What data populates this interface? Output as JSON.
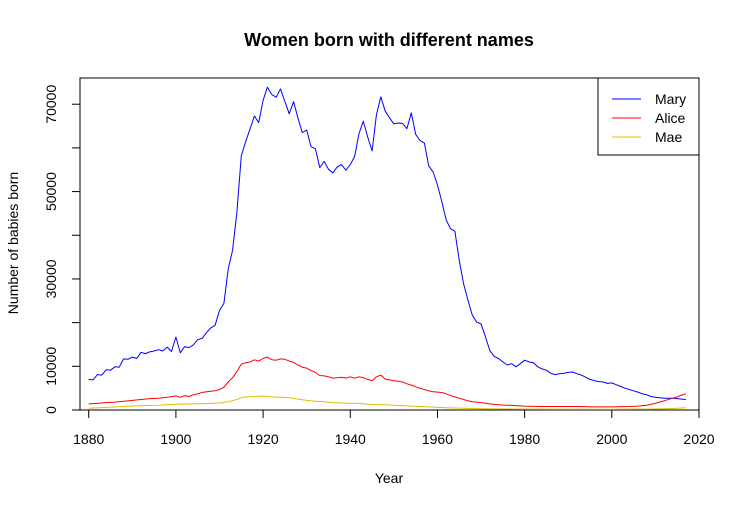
{
  "chart_data": {
    "type": "line",
    "title": "Women born with different names",
    "xlabel": "Year",
    "ylabel": "Number of babies born",
    "xlim": [
      1878,
      2020
    ],
    "ylim": [
      0,
      76000
    ],
    "x_ticks": [
      "1880",
      "1900",
      "1920",
      "1940",
      "1960",
      "1980",
      "2000",
      "2020"
    ],
    "y_ticks": [
      {
        "value": 0,
        "label": "0"
      },
      {
        "value": 10000,
        "label": "10000"
      },
      {
        "value": 20000,
        "label": ""
      },
      {
        "value": 30000,
        "label": "30000"
      },
      {
        "value": 40000,
        "label": ""
      },
      {
        "value": 50000,
        "label": "50000"
      },
      {
        "value": 60000,
        "label": ""
      },
      {
        "value": 70000,
        "label": "70000"
      }
    ],
    "legend_position": "top-right",
    "grid": false,
    "series": [
      {
        "name": "Mary",
        "color": "#0000ff",
        "points": [
          [
            1880,
            7000
          ],
          [
            1881,
            6900
          ],
          [
            1882,
            8100
          ],
          [
            1883,
            8000
          ],
          [
            1884,
            9200
          ],
          [
            1885,
            9100
          ],
          [
            1886,
            9900
          ],
          [
            1887,
            9800
          ],
          [
            1888,
            11700
          ],
          [
            1889,
            11600
          ],
          [
            1890,
            12100
          ],
          [
            1891,
            11800
          ],
          [
            1892,
            13200
          ],
          [
            1893,
            12900
          ],
          [
            1894,
            13300
          ],
          [
            1895,
            13500
          ],
          [
            1896,
            13800
          ],
          [
            1897,
            13500
          ],
          [
            1898,
            14400
          ],
          [
            1899,
            13400
          ],
          [
            1900,
            16700
          ],
          [
            1901,
            13100
          ],
          [
            1902,
            14500
          ],
          [
            1903,
            14300
          ],
          [
            1904,
            14900
          ],
          [
            1905,
            16100
          ],
          [
            1906,
            16400
          ],
          [
            1907,
            17700
          ],
          [
            1908,
            18800
          ],
          [
            1909,
            19400
          ],
          [
            1910,
            22800
          ],
          [
            1911,
            24400
          ],
          [
            1912,
            32300
          ],
          [
            1913,
            36600
          ],
          [
            1914,
            45300
          ],
          [
            1915,
            58200
          ],
          [
            1916,
            61400
          ],
          [
            1917,
            64300
          ],
          [
            1918,
            67300
          ],
          [
            1919,
            65800
          ],
          [
            1920,
            70900
          ],
          [
            1921,
            73900
          ],
          [
            1922,
            72200
          ],
          [
            1923,
            71600
          ],
          [
            1924,
            73500
          ],
          [
            1925,
            70600
          ],
          [
            1926,
            67800
          ],
          [
            1927,
            70600
          ],
          [
            1928,
            66800
          ],
          [
            1929,
            63500
          ],
          [
            1930,
            64100
          ],
          [
            1931,
            60300
          ],
          [
            1932,
            59800
          ],
          [
            1933,
            55500
          ],
          [
            1934,
            56900
          ],
          [
            1935,
            55100
          ],
          [
            1936,
            54300
          ],
          [
            1937,
            55600
          ],
          [
            1938,
            56200
          ],
          [
            1939,
            54900
          ],
          [
            1940,
            56200
          ],
          [
            1941,
            58000
          ],
          [
            1942,
            63300
          ],
          [
            1943,
            66100
          ],
          [
            1944,
            62500
          ],
          [
            1945,
            59300
          ],
          [
            1946,
            67500
          ],
          [
            1947,
            71700
          ],
          [
            1948,
            68500
          ],
          [
            1949,
            66900
          ],
          [
            1950,
            65500
          ],
          [
            1951,
            65700
          ],
          [
            1952,
            65600
          ],
          [
            1953,
            64400
          ],
          [
            1954,
            68000
          ],
          [
            1955,
            63100
          ],
          [
            1956,
            61700
          ],
          [
            1957,
            61100
          ],
          [
            1958,
            55900
          ],
          [
            1959,
            54500
          ],
          [
            1960,
            51500
          ],
          [
            1961,
            47700
          ],
          [
            1962,
            43500
          ],
          [
            1963,
            41500
          ],
          [
            1964,
            40900
          ],
          [
            1965,
            34300
          ],
          [
            1966,
            28900
          ],
          [
            1967,
            25100
          ],
          [
            1968,
            21700
          ],
          [
            1969,
            20100
          ],
          [
            1970,
            19700
          ],
          [
            1971,
            16800
          ],
          [
            1972,
            13600
          ],
          [
            1973,
            12300
          ],
          [
            1974,
            11800
          ],
          [
            1975,
            11000
          ],
          [
            1976,
            10300
          ],
          [
            1977,
            10600
          ],
          [
            1978,
            9900
          ],
          [
            1979,
            10600
          ],
          [
            1980,
            11400
          ],
          [
            1981,
            11000
          ],
          [
            1982,
            10800
          ],
          [
            1983,
            9900
          ],
          [
            1984,
            9400
          ],
          [
            1985,
            9100
          ],
          [
            1986,
            8400
          ],
          [
            1987,
            8100
          ],
          [
            1988,
            8300
          ],
          [
            1989,
            8400
          ],
          [
            1990,
            8600
          ],
          [
            1991,
            8700
          ],
          [
            1992,
            8300
          ],
          [
            1993,
            8000
          ],
          [
            1994,
            7500
          ],
          [
            1995,
            7000
          ],
          [
            1996,
            6700
          ],
          [
            1997,
            6500
          ],
          [
            1998,
            6400
          ],
          [
            1999,
            6100
          ],
          [
            2000,
            6200
          ],
          [
            2001,
            5800
          ],
          [
            2002,
            5400
          ],
          [
            2003,
            5000
          ],
          [
            2004,
            4700
          ],
          [
            2005,
            4400
          ],
          [
            2006,
            4100
          ],
          [
            2007,
            3700
          ],
          [
            2008,
            3500
          ],
          [
            2009,
            3100
          ],
          [
            2010,
            2900
          ],
          [
            2011,
            2800
          ],
          [
            2012,
            2700
          ],
          [
            2013,
            2700
          ],
          [
            2014,
            2700
          ],
          [
            2015,
            2600
          ],
          [
            2016,
            2500
          ],
          [
            2017,
            2400
          ]
        ]
      },
      {
        "name": "Alice",
        "color": "#ff0000",
        "points": [
          [
            1880,
            1400
          ],
          [
            1882,
            1500
          ],
          [
            1884,
            1700
          ],
          [
            1886,
            1800
          ],
          [
            1888,
            2000
          ],
          [
            1890,
            2200
          ],
          [
            1892,
            2400
          ],
          [
            1894,
            2600
          ],
          [
            1896,
            2700
          ],
          [
            1898,
            2900
          ],
          [
            1900,
            3200
          ],
          [
            1901,
            2900
          ],
          [
            1902,
            3300
          ],
          [
            1903,
            3100
          ],
          [
            1904,
            3500
          ],
          [
            1905,
            3700
          ],
          [
            1906,
            4000
          ],
          [
            1907,
            4200
          ],
          [
            1908,
            4300
          ],
          [
            1909,
            4400
          ],
          [
            1910,
            4700
          ],
          [
            1911,
            5200
          ],
          [
            1912,
            6400
          ],
          [
            1913,
            7400
          ],
          [
            1914,
            8800
          ],
          [
            1915,
            10500
          ],
          [
            1916,
            10800
          ],
          [
            1917,
            11000
          ],
          [
            1918,
            11500
          ],
          [
            1919,
            11200
          ],
          [
            1920,
            11800
          ],
          [
            1921,
            12100
          ],
          [
            1922,
            11500
          ],
          [
            1923,
            11400
          ],
          [
            1924,
            11700
          ],
          [
            1925,
            11600
          ],
          [
            1926,
            11200
          ],
          [
            1927,
            10900
          ],
          [
            1928,
            10300
          ],
          [
            1929,
            9800
          ],
          [
            1930,
            9600
          ],
          [
            1931,
            9000
          ],
          [
            1932,
            8600
          ],
          [
            1933,
            7900
          ],
          [
            1934,
            7800
          ],
          [
            1935,
            7600
          ],
          [
            1936,
            7300
          ],
          [
            1937,
            7400
          ],
          [
            1938,
            7500
          ],
          [
            1939,
            7300
          ],
          [
            1940,
            7600
          ],
          [
            1941,
            7300
          ],
          [
            1942,
            7600
          ],
          [
            1943,
            7400
          ],
          [
            1944,
            7000
          ],
          [
            1945,
            6700
          ],
          [
            1946,
            7600
          ],
          [
            1947,
            8000
          ],
          [
            1948,
            7100
          ],
          [
            1949,
            6900
          ],
          [
            1950,
            6700
          ],
          [
            1951,
            6600
          ],
          [
            1952,
            6400
          ],
          [
            1953,
            6000
          ],
          [
            1954,
            5700
          ],
          [
            1955,
            5300
          ],
          [
            1956,
            5000
          ],
          [
            1957,
            4700
          ],
          [
            1958,
            4400
          ],
          [
            1959,
            4200
          ],
          [
            1960,
            4100
          ],
          [
            1961,
            4000
          ],
          [
            1962,
            3700
          ],
          [
            1963,
            3300
          ],
          [
            1964,
            3000
          ],
          [
            1965,
            2700
          ],
          [
            1966,
            2400
          ],
          [
            1967,
            2100
          ],
          [
            1968,
            1900
          ],
          [
            1969,
            1800
          ],
          [
            1970,
            1700
          ],
          [
            1972,
            1400
          ],
          [
            1974,
            1200
          ],
          [
            1976,
            1100
          ],
          [
            1978,
            1000
          ],
          [
            1980,
            900
          ],
          [
            1984,
            800
          ],
          [
            1988,
            800
          ],
          [
            1992,
            800
          ],
          [
            1996,
            700
          ],
          [
            2000,
            700
          ],
          [
            2004,
            800
          ],
          [
            2006,
            900
          ],
          [
            2008,
            1100
          ],
          [
            2010,
            1500
          ],
          [
            2012,
            2100
          ],
          [
            2014,
            2700
          ],
          [
            2015,
            3000
          ],
          [
            2016,
            3400
          ],
          [
            2017,
            3700
          ]
        ]
      },
      {
        "name": "Mae",
        "color": "#e0c000",
        "points": [
          [
            1880,
            400
          ],
          [
            1884,
            600
          ],
          [
            1888,
            800
          ],
          [
            1892,
            1000
          ],
          [
            1896,
            1100
          ],
          [
            1900,
            1300
          ],
          [
            1904,
            1400
          ],
          [
            1908,
            1500
          ],
          [
            1910,
            1600
          ],
          [
            1912,
            1900
          ],
          [
            1914,
            2400
          ],
          [
            1915,
            2800
          ],
          [
            1916,
            3000
          ],
          [
            1918,
            3100
          ],
          [
            1920,
            3200
          ],
          [
            1922,
            3000
          ],
          [
            1924,
            2900
          ],
          [
            1926,
            2800
          ],
          [
            1928,
            2500
          ],
          [
            1930,
            2200
          ],
          [
            1932,
            2000
          ],
          [
            1934,
            1900
          ],
          [
            1936,
            1700
          ],
          [
            1938,
            1600
          ],
          [
            1940,
            1500
          ],
          [
            1942,
            1500
          ],
          [
            1944,
            1300
          ],
          [
            1946,
            1200
          ],
          [
            1948,
            1200
          ],
          [
            1950,
            1100
          ],
          [
            1952,
            1000
          ],
          [
            1954,
            900
          ],
          [
            1956,
            800
          ],
          [
            1958,
            700
          ],
          [
            1960,
            600
          ],
          [
            1962,
            500
          ],
          [
            1966,
            400
          ],
          [
            1970,
            300
          ],
          [
            1980,
            200
          ],
          [
            1990,
            150
          ],
          [
            2000,
            150
          ],
          [
            2008,
            200
          ],
          [
            2012,
            300
          ],
          [
            2015,
            400
          ],
          [
            2017,
            500
          ]
        ]
      }
    ]
  }
}
